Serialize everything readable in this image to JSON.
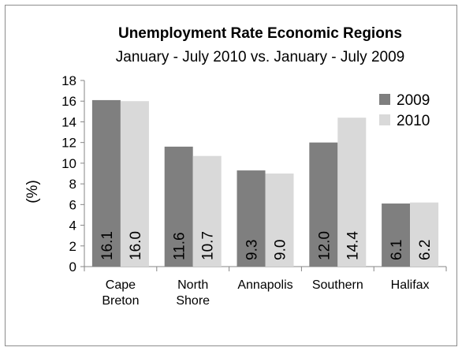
{
  "chart_data": {
    "type": "bar",
    "title": "Unemployment Rate Economic Regions",
    "subtitle": "January - July 2010 vs. January - July 2009",
    "ylabel": "(%)",
    "xlabel": "",
    "ylim": [
      0,
      18
    ],
    "yticks": [
      0,
      2,
      4,
      6,
      8,
      10,
      12,
      14,
      16,
      18
    ],
    "grid": false,
    "legend_position": "top-right",
    "categories": [
      [
        "Cape",
        "Breton"
      ],
      [
        "North",
        "Shore"
      ],
      [
        "Annapolis"
      ],
      [
        "Southern"
      ],
      [
        "Halifax"
      ]
    ],
    "series": [
      {
        "name": "2009",
        "color": "#7f7f7f",
        "values": [
          16.1,
          11.6,
          9.3,
          12.0,
          6.1
        ],
        "labels": [
          "16.1",
          "11.6",
          "9.3",
          "12.0",
          "6.1"
        ]
      },
      {
        "name": "2010",
        "color": "#d9d9d9",
        "values": [
          16.0,
          10.7,
          9.0,
          14.4,
          6.2
        ],
        "labels": [
          "16.0",
          "10.7",
          "9.0",
          "14.4",
          "6.2"
        ]
      }
    ]
  }
}
